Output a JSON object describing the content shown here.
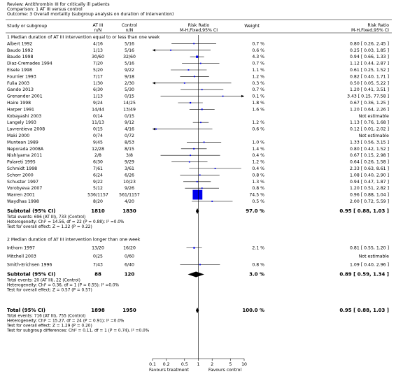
{
  "header": {
    "review": "Review:   Antithrombin III for critically ill patients",
    "comparison": "Comparison:   1 AT III versus control",
    "outcome": "Outcome:   3 Overall mortality (subgroup analysis on duration of intervention)"
  },
  "chart_data": {
    "type": "forest",
    "columns": {
      "study": "Study or subgroup",
      "treat": "AT III",
      "treat_unit": "n/N",
      "control": "Control",
      "control_unit": "n/N",
      "plot": "Risk Ratio",
      "plot_method": "M-H,Fixed,95% CI",
      "weight": "Weight",
      "result": "Risk Ratio",
      "result_method": "M-H,Fixed,95% CI"
    },
    "subgroups": [
      {
        "title": "1 Median duration of AT III intervention equal to or less than one week",
        "studies": [
          {
            "name": "Albert 1992",
            "treat": "4/16",
            "control": "5/16",
            "weight": 0.7,
            "weight_label": "0.7 %",
            "rr": 0.8,
            "lo": 0.26,
            "hi": 2.45,
            "label": "0.80 [ 0.26, 2.45 ]"
          },
          {
            "name": "Baudo 1992",
            "treat": "1/13",
            "control": "5/16",
            "weight": 0.6,
            "weight_label": "0.6 %",
            "rr": 0.25,
            "lo": 0.03,
            "hi": 1.85,
            "label": "0.25 [ 0.03, 1.85 ]"
          },
          {
            "name": "Baudo 1998",
            "treat": "30/60",
            "control": "32/60",
            "weight": 4.3,
            "weight_label": "4.3 %",
            "rr": 0.94,
            "lo": 0.66,
            "hi": 1.33,
            "label": "0.94 [ 0.66, 1.33 ]"
          },
          {
            "name": "Diaz-Cremades 1994",
            "treat": "7/20",
            "control": "5/16",
            "weight": 0.7,
            "weight_label": "0.7 %",
            "rr": 1.12,
            "lo": 0.44,
            "hi": 2.87,
            "label": "1.12 [ 0.44, 2.87 ]"
          },
          {
            "name": "Eisele 1998",
            "treat": "5/20",
            "control": "9/22",
            "weight": 1.1,
            "weight_label": "1.1 %",
            "rr": 0.61,
            "lo": 0.25,
            "hi": 1.52,
            "label": "0.61 [ 0.25, 1.52 ]"
          },
          {
            "name": "Fourrier 1993",
            "treat": "7/17",
            "control": "9/18",
            "weight": 1.2,
            "weight_label": "1.2 %",
            "rr": 0.82,
            "lo": 0.4,
            "hi": 1.71,
            "label": "0.82 [ 0.40, 1.71 ]"
          },
          {
            "name": "Fulia 2003",
            "treat": "1/30",
            "control": "2/30",
            "weight": 0.3,
            "weight_label": "0.3 %",
            "rr": 0.5,
            "lo": 0.05,
            "hi": 5.22,
            "label": "0.50 [ 0.05, 5.22 ]"
          },
          {
            "name": "Gando 2013",
            "treat": "6/30",
            "control": "5/30",
            "weight": 0.7,
            "weight_label": "0.7 %",
            "rr": 1.2,
            "lo": 0.41,
            "hi": 3.51,
            "label": "1.20 [ 0.41, 3.51 ]"
          },
          {
            "name": "Grenander 2001",
            "treat": "1/13",
            "control": "0/15",
            "weight": 0.1,
            "weight_label": "0.1 %",
            "rr": 3.43,
            "lo": 0.15,
            "hi": 77.58,
            "label": "3.43 [ 0.15, 77.58 ]"
          },
          {
            "name": "Haire 1998",
            "treat": "9/24",
            "control": "14/25",
            "weight": 1.8,
            "weight_label": "1.8 %",
            "rr": 0.67,
            "lo": 0.36,
            "hi": 1.25,
            "label": "0.67 [ 0.36, 1.25 ]"
          },
          {
            "name": "Harper 1991",
            "treat": "14/44",
            "control": "13/49",
            "weight": 1.6,
            "weight_label": "1.6 %",
            "rr": 1.2,
            "lo": 0.64,
            "hi": 2.26,
            "label": "1.20 [ 0.64, 2.26 ]"
          },
          {
            "name": "Kobayashi 2003",
            "treat": "0/14",
            "control": "0/15",
            "label": "Not estimable"
          },
          {
            "name": "Langely 1993",
            "treat": "11/13",
            "control": "9/12",
            "weight": 1.2,
            "weight_label": "1.2 %",
            "rr": 1.13,
            "lo": 0.76,
            "hi": 1.68,
            "label": "1.13 [ 0.76, 1.68 ]"
          },
          {
            "name": "Lavrentieva 2008",
            "treat": "0/15",
            "control": "4/16",
            "weight": 0.6,
            "weight_label": "0.6 %",
            "rr": 0.12,
            "lo": 0.01,
            "hi": 2.02,
            "label": "0.12 [ 0.01, 2.02 ]"
          },
          {
            "name": "Maki 2000",
            "treat": "0/74",
            "control": "0/72",
            "label": "Not estimable"
          },
          {
            "name": "Muntean 1989",
            "treat": "9/45",
            "control": "8/53",
            "weight": 1.0,
            "weight_label": "1.0 %",
            "rr": 1.33,
            "lo": 0.56,
            "hi": 3.15,
            "label": "1.33 [ 0.56, 3.15 ]"
          },
          {
            "name": "Neporada 2008A",
            "treat": "12/28",
            "control": "8/15",
            "weight": 1.4,
            "weight_label": "1.4 %",
            "rr": 0.8,
            "lo": 0.42,
            "hi": 1.52,
            "label": "0.80 [ 0.42, 1.52 ]"
          },
          {
            "name": "Nishiyama 2011",
            "treat": "2/8",
            "control": "3/8",
            "weight": 0.4,
            "weight_label": "0.4 %",
            "rr": 0.67,
            "lo": 0.15,
            "hi": 2.98,
            "label": "0.67 [ 0.15, 2.98 ]"
          },
          {
            "name": "Palareti 1995",
            "treat": "6/30",
            "control": "9/29",
            "weight": 1.2,
            "weight_label": "1.2 %",
            "rr": 0.64,
            "lo": 0.26,
            "hi": 1.58,
            "label": "0.64 [ 0.26, 1.58 ]"
          },
          {
            "name": "Schmidt 1998",
            "treat": "7/61",
            "control": "3/61",
            "weight": 0.4,
            "weight_label": "0.4 %",
            "rr": 2.33,
            "lo": 0.63,
            "hi": 8.61,
            "label": "2.33 [ 0.63, 8.61 ]"
          },
          {
            "name": "Schorr 2000",
            "treat": "6/24",
            "control": "6/26",
            "weight": 0.8,
            "weight_label": "0.8 %",
            "rr": 1.08,
            "lo": 0.4,
            "hi": 2.9,
            "label": "1.08 [ 0.40, 2.90 ]"
          },
          {
            "name": "Schuster 1997",
            "treat": "9/22",
            "control": "10/23",
            "weight": 1.3,
            "weight_label": "1.3 %",
            "rr": 0.94,
            "lo": 0.47,
            "hi": 1.87,
            "label": "0.94 [ 0.47, 1.87 ]"
          },
          {
            "name": "Vorobyeva 2007",
            "treat": "5/12",
            "control": "9/26",
            "weight": 0.8,
            "weight_label": "0.8 %",
            "rr": 1.2,
            "lo": 0.51,
            "hi": 2.82,
            "label": "1.20 [ 0.51, 2.82 ]"
          },
          {
            "name": "Warren 2001",
            "treat": "536/1157",
            "control": "561/1157",
            "weight": 74.5,
            "weight_label": "74.5 %",
            "rr": 0.96,
            "lo": 0.88,
            "hi": 1.04,
            "label": "0.96 [ 0.88, 1.04 ]"
          },
          {
            "name": "Waydhas 1998",
            "treat": "8/20",
            "control": "4/20",
            "weight": 0.5,
            "weight_label": "0.5 %",
            "rr": 2.0,
            "lo": 0.72,
            "hi": 5.59,
            "label": "2.00 [ 0.72, 5.59 ]"
          }
        ],
        "subtotal": {
          "name": "Subtotal (95% CI)",
          "treat": 1810,
          "control": 1830,
          "weight": 97.0,
          "weight_label": "97.0 %",
          "rr": 0.95,
          "lo": 0.88,
          "hi": 1.03,
          "label": "0.95 [ 0.88, 1.03 ]"
        },
        "notes": [
          "Total events: 696 (AT III), 733 (Control)",
          "Heterogeneity: Chi² = 14.56, df = 22 (P = 0.88); I² =0.0%",
          "Test for overall effect: Z = 1.22 (P = 0.22)"
        ]
      },
      {
        "title": "2 Median duration of AT III intervention longer than one week",
        "studies": [
          {
            "name": "Inthorn 1997",
            "treat": "13/20",
            "control": "16/20",
            "weight": 2.1,
            "weight_label": "2.1 %",
            "rr": 0.81,
            "lo": 0.55,
            "hi": 1.2,
            "label": "0.81 [ 0.55, 1.20 ]"
          },
          {
            "name": "Mitchell 2003",
            "treat": "0/25",
            "control": "0/60",
            "label": "Not estimable"
          },
          {
            "name": "Smith-Erichsen 1996",
            "treat": "7/43",
            "control": "6/40",
            "weight": 0.8,
            "weight_label": "0.8 %",
            "rr": 1.09,
            "lo": 0.4,
            "hi": 2.96,
            "label": "1.09 [ 0.40, 2.96 ]"
          }
        ],
        "subtotal": {
          "name": "Subtotal (95% CI)",
          "treat": 88,
          "control": 120,
          "weight": 3.0,
          "weight_label": "3.0 %",
          "rr": 0.89,
          "lo": 0.59,
          "hi": 1.34,
          "label": "0.89 [ 0.59, 1.34 ]"
        },
        "notes": [
          "Total events: 20 (AT III), 22 (Control)",
          "Heterogeneity: Chi² = 0.36, df = 1 (P = 0.55); I² =0.0%",
          "Test for overall effect: Z = 0.57 (P = 0.57)"
        ]
      }
    ],
    "total": {
      "name": "Total (95% CI)",
      "treat": 1898,
      "control": 1950,
      "weight": 100.0,
      "weight_label": "100.0 %",
      "rr": 0.95,
      "lo": 0.88,
      "hi": 1.03,
      "label": "0.95 [ 0.88, 1.03 ]",
      "notes": [
        "Total events: 716 (AT III), 755 (Control)",
        "Heterogeneity: Chi² = 15.27, df = 24 (P = 0.91); I² =0.0%",
        "Test for overall effect: Z = 1.29 (P = 0.20)",
        "Test for subgroup differences: Chi² = 0.11, df = 1 (P = 0.74), I² =0.0%"
      ]
    },
    "xlim": [
      0.1,
      10
    ],
    "xticks": [
      0.1,
      0.2,
      0.5,
      1,
      2,
      5,
      10
    ],
    "log_x": true,
    "x_labels": {
      "left": "Favours treatment",
      "right": "Favours control"
    },
    "study_color": "#0000ee",
    "summary_color": "#000000"
  }
}
